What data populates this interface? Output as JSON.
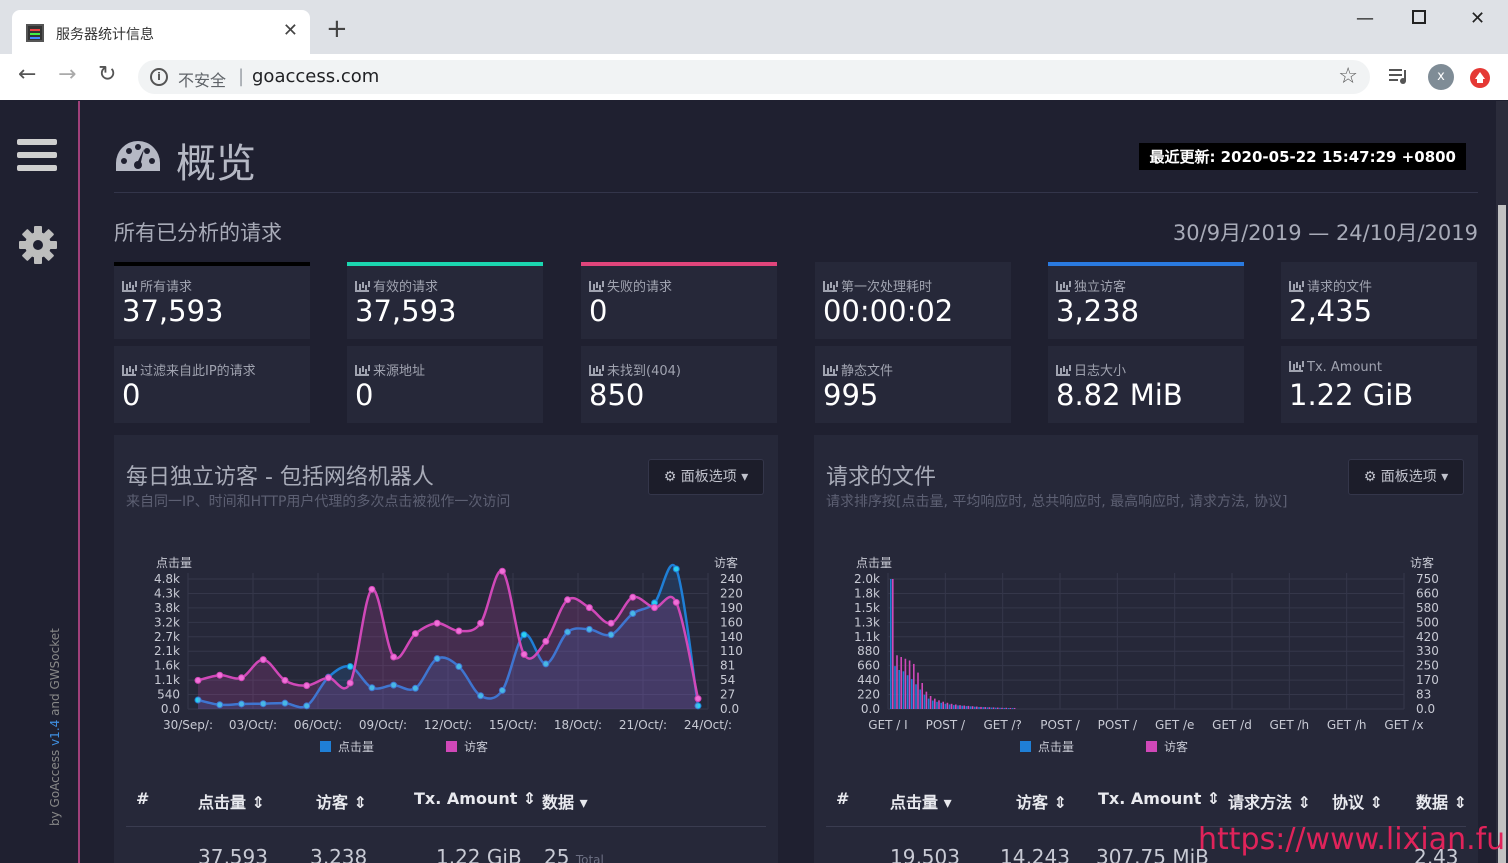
{
  "browser": {
    "tab_title": "服务器统计信息",
    "insecure_label": "不安全",
    "url": "goaccess.com",
    "profile_initial": "x"
  },
  "sidebar": {
    "credit_prefix": "by GoAccess ",
    "version": "v1.4",
    "credit_suffix": " and GWSocket"
  },
  "header": {
    "title": "概览",
    "last_updated_label": "最近更新:",
    "last_updated_value": "2020-05-22 15:47:29 +0800"
  },
  "overview": {
    "section_title": "所有已分析的请求",
    "date_range": "30/9月/2019 — 24/10月/2019",
    "cards": [
      {
        "label": "所有请求",
        "value": "37,593",
        "accent": "#000000"
      },
      {
        "label": "有效的请求",
        "value": "37,593",
        "accent": "#1bd6b0"
      },
      {
        "label": "失败的请求",
        "value": "0",
        "accent": "#e0457b"
      },
      {
        "label": "第一次处理耗时",
        "value": "00:00:02",
        "accent": ""
      },
      {
        "label": "独立访客",
        "value": "3,238",
        "accent": "#2a7ae0"
      },
      {
        "label": "请求的文件",
        "value": "2,435",
        "accent": ""
      },
      {
        "label": "过滤来自此IP的请求",
        "value": "0",
        "accent": ""
      },
      {
        "label": "来源地址",
        "value": "0",
        "accent": ""
      },
      {
        "label": "未找到(404)",
        "value": "850",
        "accent": ""
      },
      {
        "label": "静态文件",
        "value": "995",
        "accent": ""
      },
      {
        "label": "日志大小",
        "value": "8.82 MiB",
        "accent": ""
      },
      {
        "label": "Tx. Amount",
        "value": "1.22 GiB",
        "accent": ""
      }
    ]
  },
  "panel_left": {
    "title": "每日独立访客 - 包括网络机器人",
    "subtitle": "来自同一IP、时间和HTTP用户代理的多次点击被视作一次访问",
    "options_label": "面板选项",
    "columns": [
      "#",
      "点击量",
      "访客",
      "Tx. Amount",
      "数据"
    ],
    "summary": {
      "hits": "37,593",
      "visitors": "3,238",
      "tx": "1.22 GiB",
      "data": "25",
      "data_suffix": "Total"
    }
  },
  "panel_right": {
    "title": "请求的文件",
    "subtitle": "请求排序按[点击量, 平均响应时, 总共响应时, 最高响应时, 请求方法, 协议]",
    "options_label": "面板选项",
    "columns": [
      "#",
      "点击量",
      "访客",
      "Tx. Amount",
      "请求方法",
      "协议",
      "数据"
    ],
    "summary": {
      "hits": "19,503",
      "visitors": "14,243",
      "tx": "307.75 MiB",
      "data": "2,43"
    }
  },
  "chart_data": [
    {
      "type": "line",
      "ylabel": "点击量",
      "y2label": "访客",
      "y_ticks": [
        "0.0",
        "540",
        "1.1k",
        "1.6k",
        "2.1k",
        "2.7k",
        "3.2k",
        "3.8k",
        "4.3k",
        "4.8k"
      ],
      "y2_ticks": [
        "0.0",
        "27",
        "54",
        "81",
        "110",
        "140",
        "160",
        "190",
        "220",
        "240"
      ],
      "x_ticks": [
        "30/Sep/:",
        "03/Oct/:",
        "06/Oct/:",
        "09/Oct/:",
        "12/Oct/:",
        "15/Oct/:",
        "18/Oct/:",
        "21/Oct/:",
        "24/Oct/:"
      ],
      "ylim": [
        0,
        4900
      ],
      "y2lim": [
        0,
        250
      ],
      "series": [
        {
          "name": "点击量",
          "color": "#1f7fd6",
          "values": [
            340,
            160,
            190,
            200,
            220,
            120,
            1200,
            1600,
            800,
            900,
            780,
            1900,
            1600,
            500,
            700,
            2800,
            1700,
            2900,
            3000,
            2800,
            3600,
            4000,
            5400,
            120
          ]
        },
        {
          "name": "访客",
          "color": "#d048b8",
          "values": [
            55,
            65,
            60,
            95,
            55,
            45,
            60,
            50,
            230,
            100,
            145,
            165,
            150,
            165,
            265,
            105,
            130,
            210,
            195,
            165,
            215,
            195,
            205,
            20
          ]
        }
      ]
    },
    {
      "type": "bar",
      "ylabel": "点击量",
      "y2label": "访客",
      "y_ticks": [
        "0.0",
        "220",
        "440",
        "660",
        "880",
        "1.1k",
        "1.3k",
        "1.5k",
        "1.8k",
        "2.0k"
      ],
      "y2_ticks": [
        "0.0",
        "83",
        "170",
        "250",
        "330",
        "420",
        "500",
        "580",
        "660",
        "750"
      ],
      "x_ticks": [
        "GET / I",
        "POST /",
        "GET /?",
        "POST /",
        "POST /",
        "GET /e",
        "GET /d",
        "GET /h",
        "GET /h",
        "GET /x"
      ],
      "ylim": [
        0,
        2000
      ],
      "y2lim": [
        0,
        750
      ],
      "series": [
        {
          "name": "点击量",
          "color": "#1f7fd6",
          "values": [
            2000,
            660,
            600,
            580,
            520,
            460,
            380,
            300,
            220,
            160,
            130,
            110,
            95,
            80,
            70,
            60,
            55,
            50,
            45,
            40,
            35,
            30,
            28,
            25,
            22,
            20,
            18,
            16,
            15,
            14
          ]
        },
        {
          "name": "访客",
          "color": "#d048b8",
          "values": [
            750,
            310,
            300,
            290,
            280,
            260,
            210,
            150,
            100,
            75,
            60,
            50,
            42,
            36,
            30,
            26,
            22,
            20,
            18,
            16,
            14,
            12,
            11,
            10,
            9,
            8,
            7,
            7,
            6,
            6
          ]
        }
      ]
    }
  ],
  "watermark": "https://www.lixian.fun"
}
